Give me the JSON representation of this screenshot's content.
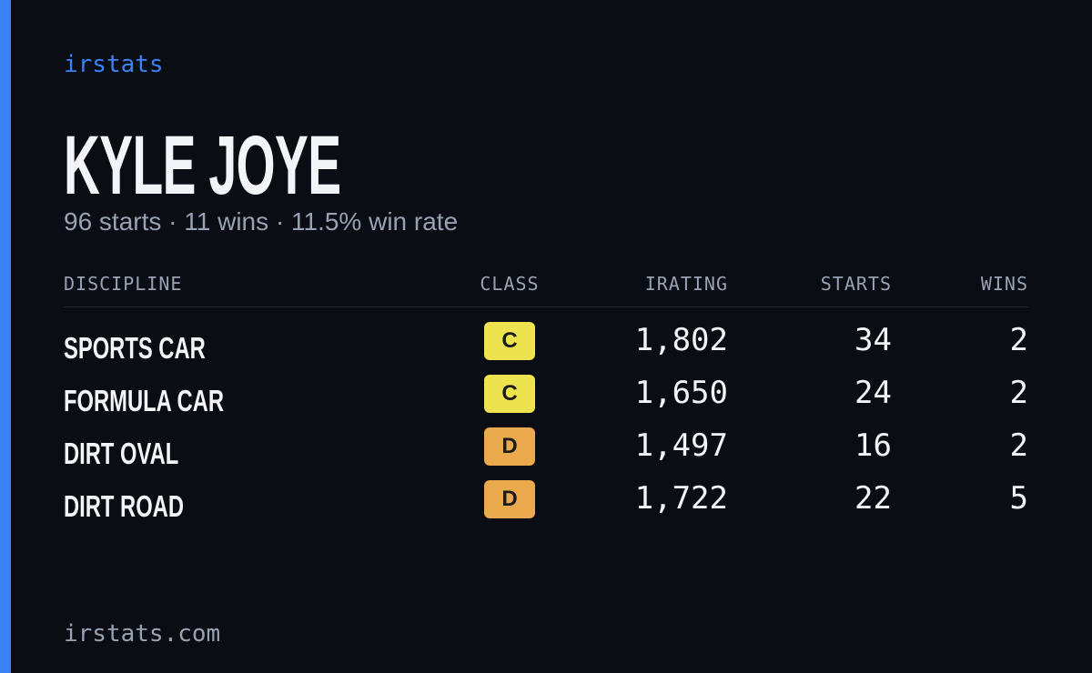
{
  "brand": "irstats",
  "name": "KYLE JOYE",
  "summary": "96 starts · 11 wins · 11.5% win rate",
  "table": {
    "headers": [
      "DISCIPLINE",
      "CLASS",
      "IRATING",
      "STARTS",
      "WINS"
    ],
    "rows": [
      [
        "SPORTS CAR",
        "C",
        "1,802",
        "34",
        "2"
      ],
      [
        "FORMULA CAR",
        "C",
        "1,650",
        "24",
        "2"
      ],
      [
        "DIRT OVAL",
        "D",
        "1,497",
        "16",
        "2"
      ],
      [
        "DIRT ROAD",
        "D",
        "1,722",
        "22",
        "5"
      ]
    ]
  },
  "class_colors": {
    "C": "#ede34f",
    "D": "#eaa94c"
  },
  "footer": "irstats.com"
}
